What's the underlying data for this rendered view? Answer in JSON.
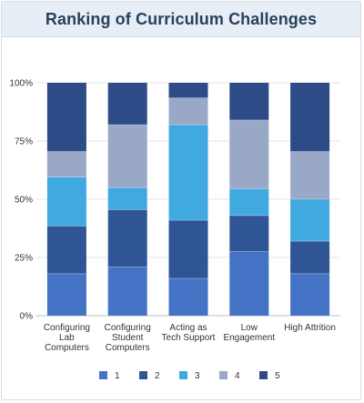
{
  "chart_data": {
    "type": "bar",
    "stacked": true,
    "title": "Ranking of Curriculum Challenges",
    "xlabel": "",
    "ylabel": "",
    "ylim": [
      0,
      100
    ],
    "yticks": [
      "0%",
      "25%",
      "50%",
      "75%",
      "100%"
    ],
    "yticks_values": [
      0,
      25,
      50,
      75,
      100
    ],
    "grid": true,
    "legend_position": "bottom",
    "categories": [
      "Configuring Lab Computers",
      "Configuring Student Computers",
      "Acting as Tech Support",
      "Low Engagement",
      "High Attrition"
    ],
    "category_label_lines": [
      [
        "Configuring",
        "Lab",
        "Computers"
      ],
      [
        "Configuring",
        "Student",
        "Computers"
      ],
      [
        "Acting as",
        "Tech Support"
      ],
      [
        "Low",
        "Engagement"
      ],
      [
        "High Attrition"
      ]
    ],
    "series": [
      {
        "name": "1",
        "color": "#4472c4",
        "values": [
          18,
          21,
          16,
          27.5,
          18
        ]
      },
      {
        "name": "2",
        "color": "#2f5597",
        "values": [
          20.5,
          24.5,
          25,
          15.5,
          14
        ]
      },
      {
        "name": "3",
        "color": "#3fa9e0",
        "values": [
          21,
          9.5,
          41,
          11.5,
          18
        ]
      },
      {
        "name": "4",
        "color": "#9aa8c8",
        "values": [
          11,
          27,
          11.5,
          29.5,
          20.5
        ]
      },
      {
        "name": "5",
        "color": "#2d4b86",
        "values": [
          29.5,
          18,
          6.5,
          16,
          29.5
        ]
      }
    ]
  }
}
